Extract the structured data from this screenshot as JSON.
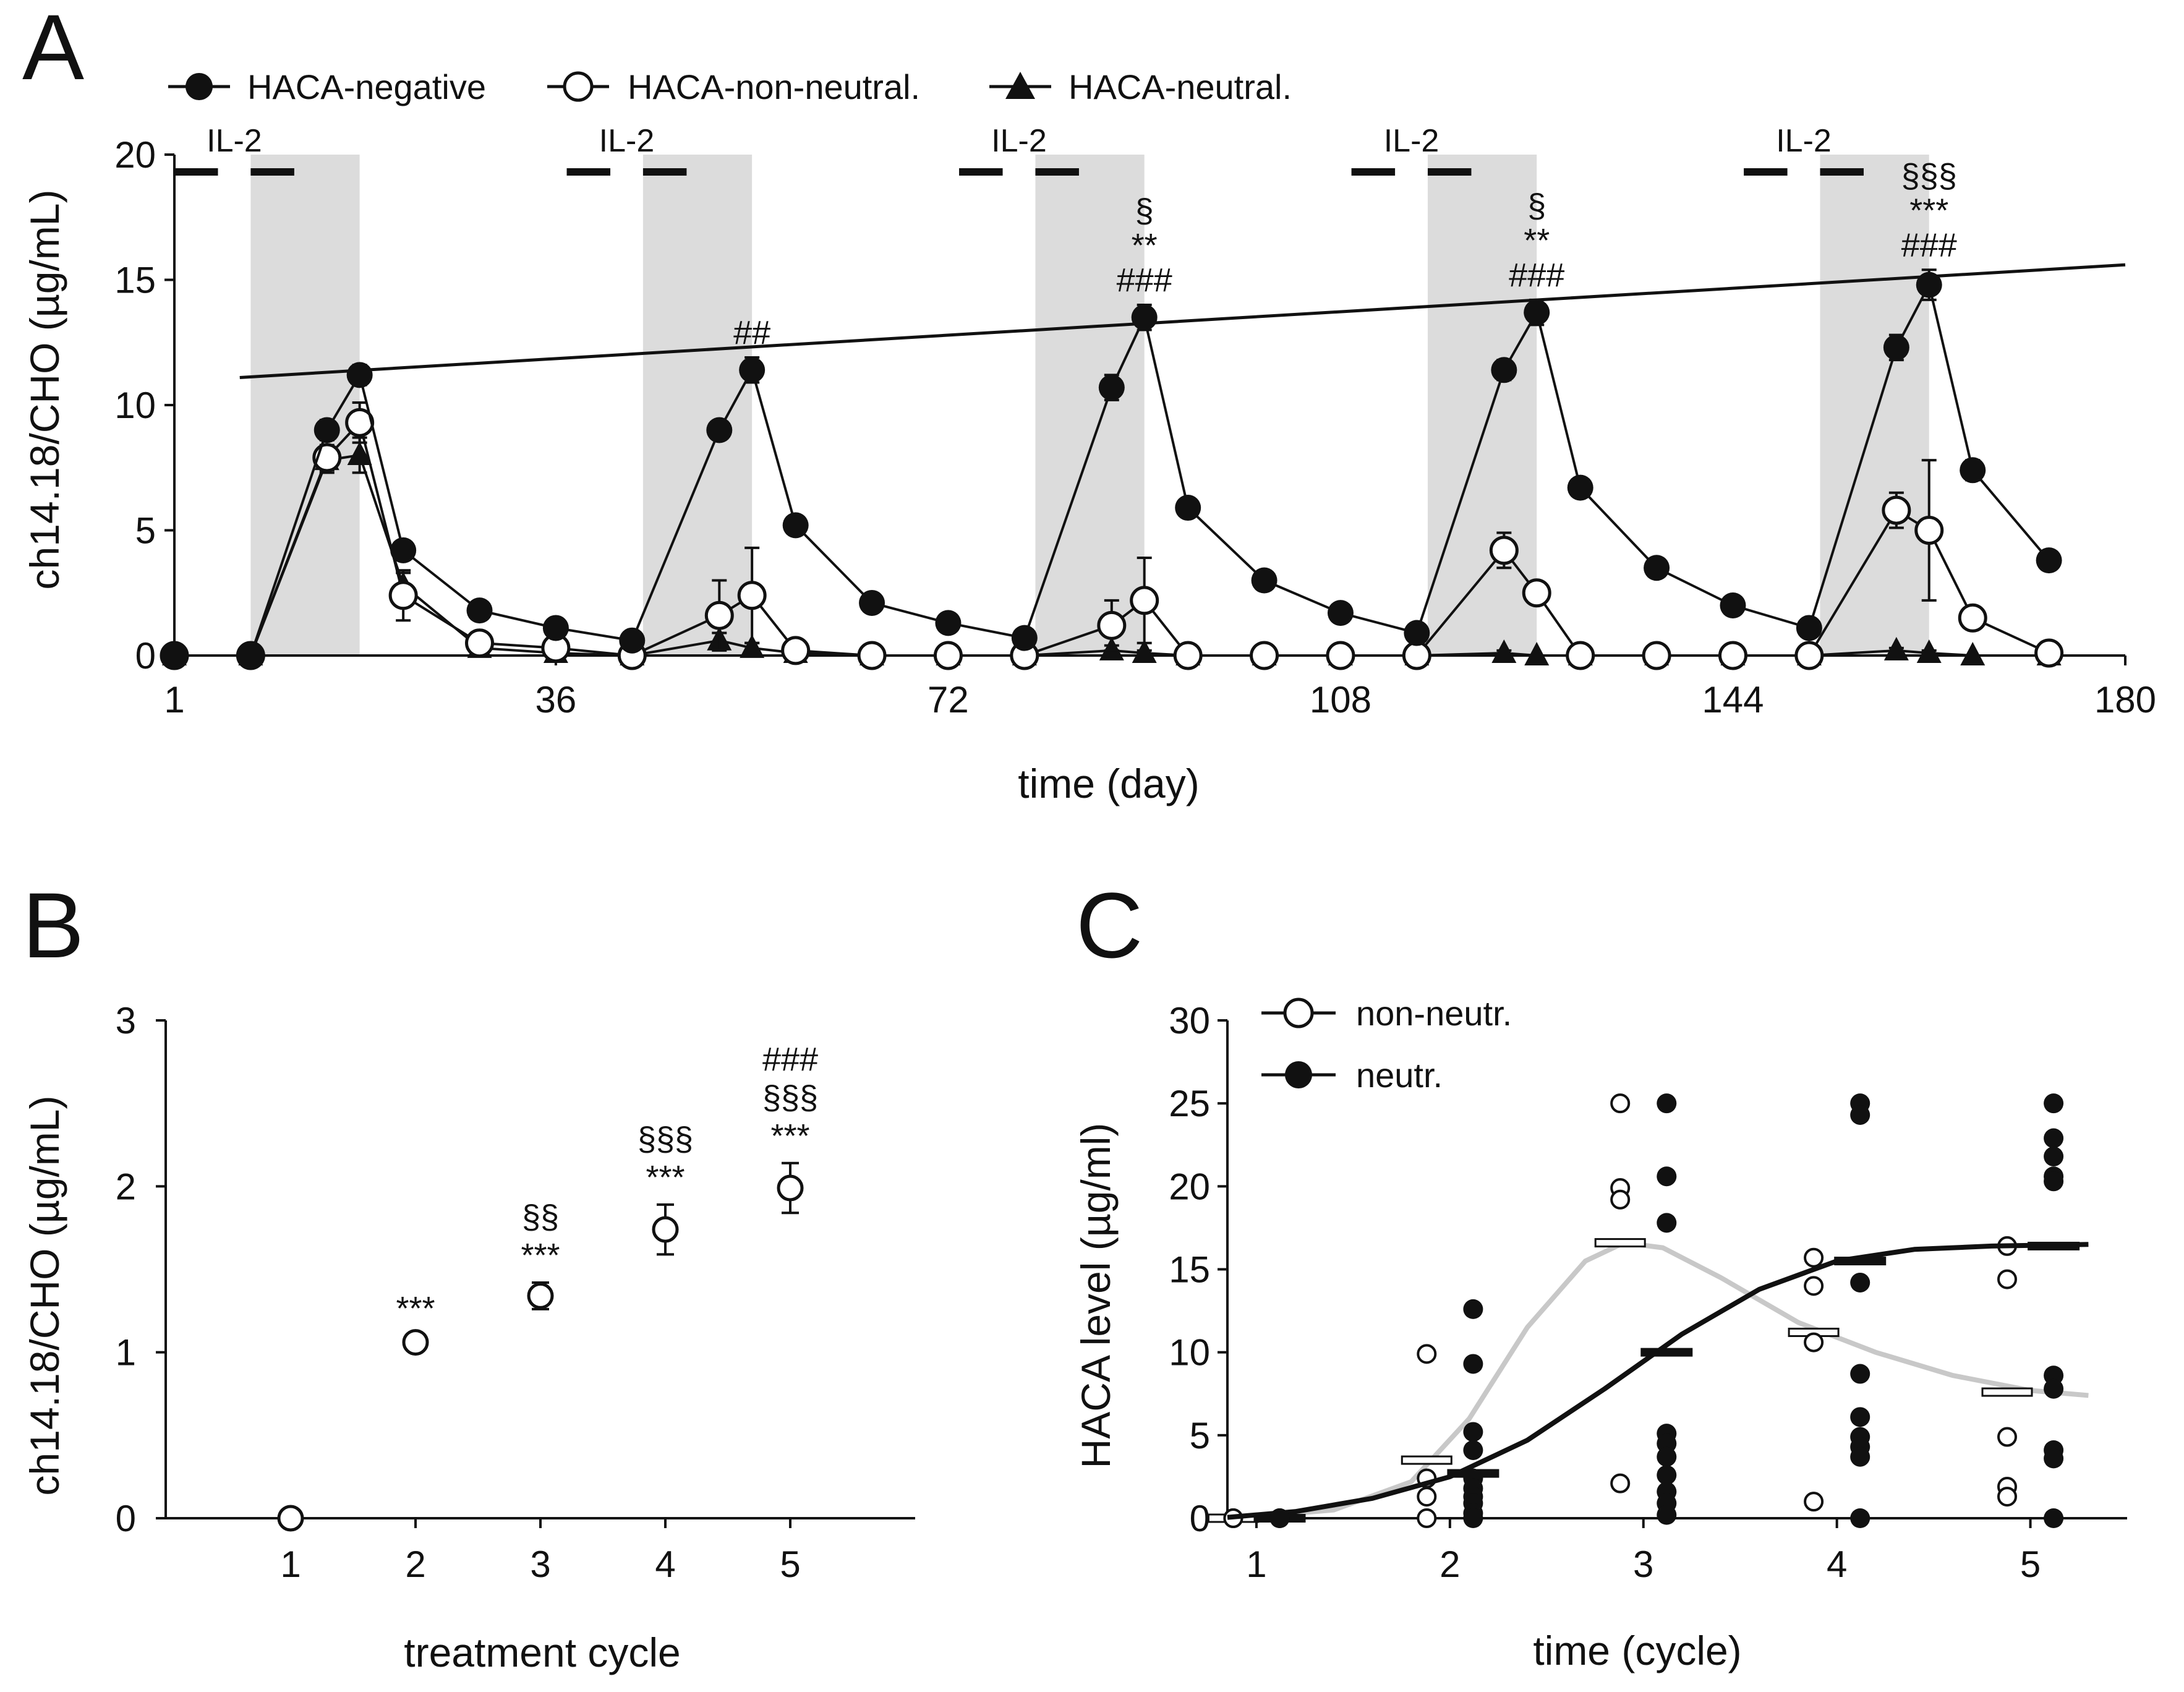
{
  "colors": {
    "ink": "#111111",
    "shade": "#dcdcdc",
    "grey_fit": "#c8c8c8"
  },
  "chart_data": [
    {
      "panel": "A",
      "type": "line",
      "panel_label": "A",
      "ylabel": "ch14.18/CHO (µg/mL)",
      "xlabel": "time (day)",
      "xlim": [
        1,
        180
      ],
      "ylim": [
        0,
        20
      ],
      "xticks": [
        1,
        36,
        72,
        108,
        144,
        180
      ],
      "yticks": [
        0,
        5,
        10,
        15,
        20
      ],
      "legend": [
        "HACA-negative",
        "HACA-non-neutral.",
        "HACA-neutral."
      ],
      "il2_label": "IL-2",
      "il2_periods": [
        {
          "label": "IL-2",
          "bars": [
            [
              1,
              5
            ],
            [
              8,
              12
            ]
          ]
        },
        {
          "label": "IL-2",
          "bars": [
            [
              37,
              41
            ],
            [
              44,
              48
            ]
          ]
        },
        {
          "label": "IL-2",
          "bars": [
            [
              73,
              77
            ],
            [
              80,
              84
            ]
          ]
        },
        {
          "label": "IL-2",
          "bars": [
            [
              109,
              113
            ],
            [
              116,
              120
            ]
          ]
        },
        {
          "label": "IL-2",
          "bars": [
            [
              145,
              149
            ],
            [
              152,
              156
            ]
          ]
        }
      ],
      "shaded_regions": [
        [
          8,
          18
        ],
        [
          44,
          54
        ],
        [
          80,
          90
        ],
        [
          116,
          126
        ],
        [
          152,
          162
        ]
      ],
      "trend_line": {
        "x": [
          7,
          180
        ],
        "y": [
          11.1,
          15.6
        ]
      },
      "series": [
        {
          "name": "HACA-negative",
          "marker": "filled-circle",
          "x": [
            1,
            8,
            15,
            18,
            22,
            29,
            36,
            43,
            51,
            54,
            58,
            65,
            72,
            79,
            87,
            90,
            94,
            101,
            108,
            115,
            123,
            126,
            130,
            137,
            144,
            151,
            159,
            162,
            166,
            173
          ],
          "y": [
            0,
            0,
            9.0,
            11.2,
            4.2,
            1.8,
            1.1,
            0.6,
            9.0,
            11.4,
            5.2,
            2.1,
            1.3,
            0.7,
            10.7,
            13.5,
            5.9,
            3.0,
            1.7,
            0.9,
            11.4,
            13.7,
            6.7,
            3.5,
            2.0,
            1.1,
            12.3,
            14.8,
            7.4,
            3.8
          ],
          "err": [
            0,
            0,
            0.4,
            0.4,
            0.3,
            0.2,
            0.15,
            0.1,
            0.3,
            0.5,
            0.3,
            0.2,
            0.15,
            0.1,
            0.5,
            0.5,
            0.3,
            0.3,
            0.2,
            0.15,
            0.4,
            0.5,
            0.3,
            0.3,
            0.2,
            0.15,
            0.5,
            0.6,
            0.4,
            0.3
          ]
        },
        {
          "name": "HACA-non-neutral.",
          "marker": "open-circle",
          "x": [
            1,
            8,
            15,
            18,
            22,
            29,
            36,
            43,
            51,
            54,
            58,
            65,
            72,
            79,
            87,
            90,
            94,
            101,
            108,
            115,
            123,
            126,
            130,
            137,
            144,
            151,
            159,
            162,
            166,
            173
          ],
          "y": [
            0,
            0,
            7.9,
            9.3,
            2.4,
            0.5,
            0.3,
            0,
            1.6,
            2.4,
            0.2,
            0,
            0,
            0,
            1.2,
            2.2,
            0,
            0,
            0,
            0,
            4.2,
            2.5,
            0,
            0,
            0,
            0,
            5.8,
            5.0,
            1.5,
            0.1
          ],
          "err": [
            0,
            0,
            0.5,
            0.8,
            1.0,
            0.3,
            0.2,
            0,
            1.4,
            1.9,
            0.3,
            0,
            0,
            0,
            1.0,
            1.7,
            0,
            0,
            0,
            0,
            0.7,
            0.3,
            0,
            0,
            0,
            0,
            0.7,
            2.8,
            0.3,
            0.1
          ]
        },
        {
          "name": "HACA-neutral.",
          "marker": "filled-triangle",
          "x": [
            1,
            8,
            15,
            18,
            22,
            29,
            36,
            43,
            51,
            54,
            58,
            65,
            72,
            79,
            87,
            90,
            94,
            101,
            108,
            115,
            123,
            126,
            130,
            137,
            144,
            151,
            159,
            162,
            166,
            173
          ],
          "y": [
            0,
            0,
            7.8,
            8.0,
            2.8,
            0.3,
            0.1,
            0,
            0.6,
            0.3,
            0.1,
            0,
            0,
            0,
            0.2,
            0.1,
            0,
            0,
            0,
            0,
            0.1,
            0,
            0,
            0,
            0,
            0,
            0.2,
            0.1,
            0,
            0
          ],
          "err": [
            0,
            0,
            0.5,
            0.7,
            0.5,
            0.2,
            0.1,
            0,
            0.3,
            0.2,
            0.1,
            0,
            0,
            0,
            0.2,
            0.1,
            0,
            0,
            0,
            0,
            0.1,
            0,
            0,
            0,
            0,
            0,
            0.1,
            0.1,
            0,
            0
          ]
        }
      ],
      "annotations": [
        {
          "x": 54,
          "lines": [
            "##"
          ]
        },
        {
          "x": 90,
          "lines": [
            "§",
            "**",
            "###"
          ]
        },
        {
          "x": 126,
          "lines": [
            "§",
            "**",
            "###"
          ]
        },
        {
          "x": 162,
          "lines": [
            "§§§",
            "***",
            "###"
          ]
        }
      ]
    },
    {
      "panel": "B",
      "type": "scatter",
      "panel_label": "B",
      "ylabel": "ch14.18/CHO (µg/mL)",
      "xlabel": "treatment cycle",
      "xlim": [
        0,
        6
      ],
      "ylim": [
        0,
        3
      ],
      "xticks": [
        1,
        2,
        3,
        4,
        5
      ],
      "yticks": [
        0,
        1,
        2,
        3
      ],
      "series": [
        {
          "name": "ch14.18/CHO",
          "marker": "open-circle",
          "x": [
            1,
            2,
            3,
            4,
            5
          ],
          "y": [
            0,
            1.06,
            1.34,
            1.74,
            1.99
          ],
          "err": [
            0,
            0.04,
            0.08,
            0.15,
            0.15
          ]
        }
      ],
      "annotations": [
        {
          "x": 2,
          "lines": [
            "***"
          ]
        },
        {
          "x": 3,
          "lines": [
            "§§",
            "***"
          ]
        },
        {
          "x": 4,
          "lines": [
            "§§§",
            "***"
          ]
        },
        {
          "x": 5,
          "lines": [
            "###",
            "§§§",
            "***"
          ]
        }
      ]
    },
    {
      "panel": "C",
      "type": "scatter",
      "panel_label": "C",
      "ylabel": "HACA level (µg/ml)",
      "xlabel": "time (cycle)",
      "xlim": [
        0.85,
        5.5
      ],
      "ylim": [
        0,
        30
      ],
      "xticks": [
        1,
        2,
        3,
        4,
        5
      ],
      "yticks": [
        0,
        5,
        10,
        15,
        20,
        25,
        30
      ],
      "legend": [
        "non-neutr.",
        "neutr."
      ],
      "series": [
        {
          "name": "non-neutr.",
          "marker": "open-circle",
          "offset": -0.12,
          "points": [
            [
              1,
              0
            ],
            [
              1,
              0
            ],
            [
              2,
              9.9
            ],
            [
              2,
              2.4
            ],
            [
              2,
              1.3
            ],
            [
              2,
              0
            ],
            [
              3,
              25.0
            ],
            [
              3,
              19.9
            ],
            [
              3,
              19.2
            ],
            [
              3,
              2.1
            ],
            [
              4,
              15.7
            ],
            [
              4,
              14.0
            ],
            [
              4,
              10.6
            ],
            [
              4,
              1.0
            ],
            [
              5,
              16.4
            ],
            [
              5,
              14.4
            ],
            [
              5,
              4.9
            ],
            [
              5,
              1.9
            ],
            [
              5,
              1.3
            ]
          ],
          "medians": [
            [
              1,
              0
            ],
            [
              2,
              3.5
            ],
            [
              3,
              16.6
            ],
            [
              4,
              11.2
            ],
            [
              5,
              7.6
            ]
          ],
          "fit": [
            [
              0.85,
              0
            ],
            [
              1,
              0.1
            ],
            [
              1.4,
              0.5
            ],
            [
              1.8,
              2.2
            ],
            [
              2.1,
              6.0
            ],
            [
              2.4,
              11.5
            ],
            [
              2.7,
              15.5
            ],
            [
              2.9,
              16.6
            ],
            [
              3.1,
              16.3
            ],
            [
              3.4,
              14.5
            ],
            [
              3.8,
              11.8
            ],
            [
              4.2,
              10.0
            ],
            [
              4.6,
              8.6
            ],
            [
              5.0,
              7.7
            ],
            [
              5.3,
              7.4
            ]
          ]
        },
        {
          "name": "neutr.",
          "marker": "filled-circle",
          "offset": 0.12,
          "points": [
            [
              1,
              0
            ],
            [
              1,
              0
            ],
            [
              2,
              12.6
            ],
            [
              2,
              9.3
            ],
            [
              2,
              5.2
            ],
            [
              2,
              4.1
            ],
            [
              2,
              2.4
            ],
            [
              2,
              1.8
            ],
            [
              2,
              1.3
            ],
            [
              2,
              0.9
            ],
            [
              2,
              0.3
            ],
            [
              2,
              0
            ],
            [
              3,
              25.0
            ],
            [
              3,
              20.6
            ],
            [
              3,
              17.8
            ],
            [
              3,
              5.1
            ],
            [
              3,
              4.5
            ],
            [
              3,
              3.7
            ],
            [
              3,
              2.6
            ],
            [
              3,
              1.6
            ],
            [
              3,
              0.9
            ],
            [
              3,
              0.2
            ],
            [
              4,
              25.0
            ],
            [
              4,
              24.3
            ],
            [
              4,
              14.2
            ],
            [
              4,
              8.7
            ],
            [
              4,
              6.1
            ],
            [
              4,
              4.9
            ],
            [
              4,
              4.3
            ],
            [
              4,
              3.7
            ],
            [
              4,
              0
            ],
            [
              5,
              25.0
            ],
            [
              5,
              22.9
            ],
            [
              5,
              21.8
            ],
            [
              5,
              20.6
            ],
            [
              5,
              20.3
            ],
            [
              5,
              8.6
            ],
            [
              5,
              7.8
            ],
            [
              5,
              4.1
            ],
            [
              5,
              3.6
            ],
            [
              5,
              0
            ]
          ],
          "medians": [
            [
              1,
              0
            ],
            [
              2,
              2.7
            ],
            [
              3,
              10.0
            ],
            [
              4,
              15.5
            ],
            [
              5,
              16.4
            ]
          ],
          "fit": [
            [
              0.85,
              0.05
            ],
            [
              1.2,
              0.4
            ],
            [
              1.6,
              1.2
            ],
            [
              2.0,
              2.5
            ],
            [
              2.4,
              4.7
            ],
            [
              2.8,
              7.8
            ],
            [
              3.2,
              11.1
            ],
            [
              3.6,
              13.8
            ],
            [
              4.0,
              15.5
            ],
            [
              4.4,
              16.2
            ],
            [
              4.8,
              16.4
            ],
            [
              5.3,
              16.5
            ]
          ]
        }
      ]
    }
  ]
}
